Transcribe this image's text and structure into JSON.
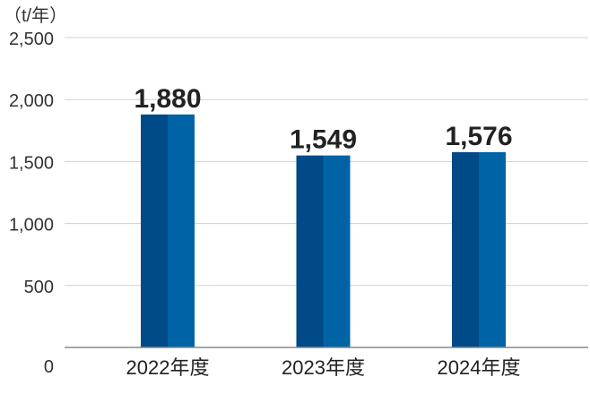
{
  "chart_data": {
    "type": "bar",
    "unit_label": "（t/年）",
    "categories": [
      "2022年度",
      "2023年度",
      "2024年度"
    ],
    "values": [
      1880,
      1549,
      1576
    ],
    "value_labels": [
      "1,880",
      "1,549",
      "1,576"
    ],
    "yticks": [
      0,
      500,
      1000,
      1500,
      2000,
      2500
    ],
    "ytick_labels": [
      "0",
      "500",
      "1,000",
      "1,500",
      "2,000",
      "2,500"
    ],
    "ylim": [
      0,
      2500
    ],
    "grid": true,
    "legend": "none",
    "colors": {
      "bar_dark": "#004a88",
      "bar_light": "#0063a6"
    }
  }
}
